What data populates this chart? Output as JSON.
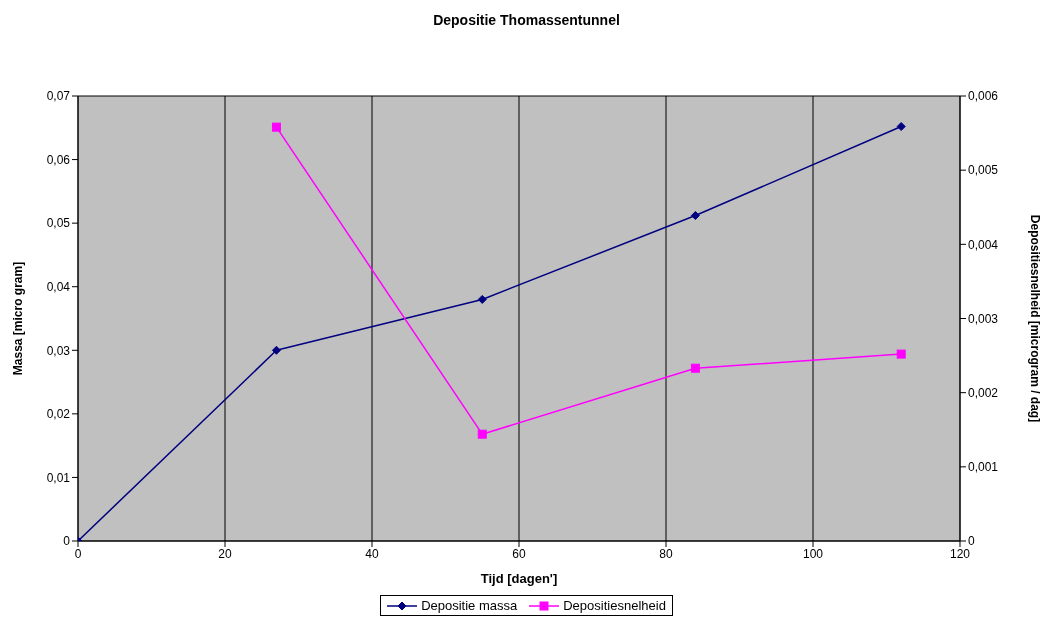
{
  "chart_data": {
    "type": "line",
    "title": "Depositie Thomassentunnel",
    "xlabel": "Tijd [dagen']",
    "ylabel": "Massa [micro gram]",
    "y2label": "Depositiesnelheid [microgram / dag]",
    "x": [
      0,
      27,
      55,
      84,
      112
    ],
    "series": [
      {
        "name": "Depositie massa",
        "color": "#000080",
        "marker": "diamond",
        "values": [
          0,
          0.03,
          0.038,
          0.0512,
          0.0652
        ]
      },
      {
        "name": "Depositiesnelheid",
        "color": "#ff00ff",
        "marker": "square",
        "axis": "y2",
        "values": [
          null,
          0.00558,
          0.00144,
          0.00233,
          0.00252
        ]
      }
    ],
    "xlim": [
      0,
      120
    ],
    "xticks": [
      0,
      20,
      40,
      60,
      80,
      100,
      120
    ],
    "ylim": [
      0,
      0.07
    ],
    "yticks": [
      0,
      {
        "value": 0.01,
        "label": "0,01"
      },
      {
        "value": 0.02,
        "label": "0,02"
      },
      {
        "value": 0.03,
        "label": "0,03"
      },
      {
        "value": 0.04,
        "label": "0,04"
      },
      {
        "value": 0.05,
        "label": "0,05"
      },
      {
        "value": 0.06,
        "label": "0,06"
      },
      {
        "value": 0.07,
        "label": "0,07"
      }
    ],
    "y2lim": [
      0,
      0.006
    ],
    "y2ticks": [
      0,
      {
        "value": 0.001,
        "label": "0,001"
      },
      {
        "value": 0.002,
        "label": "0,002"
      },
      {
        "value": 0.003,
        "label": "0,003"
      },
      {
        "value": 0.004,
        "label": "0,004"
      },
      {
        "value": 0.005,
        "label": "0,005"
      },
      {
        "value": 0.006,
        "label": "0,006"
      }
    ],
    "grid": true,
    "legend": "bottom",
    "line_style": "solid"
  }
}
